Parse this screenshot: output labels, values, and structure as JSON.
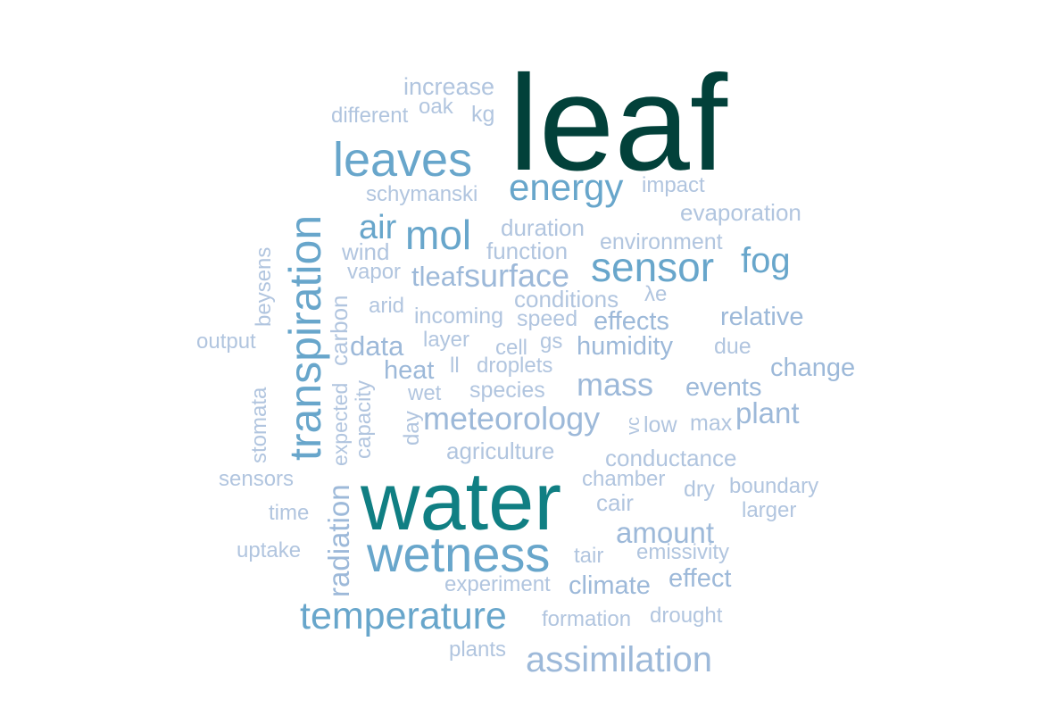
{
  "colors": {
    "darkest": "#02413a",
    "teal": "#107f83",
    "medium_blue": "#68a6cb",
    "light_blue": "#9db9d9",
    "pale_blue": "#b1c5df"
  },
  "words": [
    {
      "text": "leaf",
      "color": "darkest"
    },
    {
      "text": "water",
      "color": "teal"
    },
    {
      "text": "leaves",
      "color": "medium_blue"
    },
    {
      "text": "transpiration",
      "color": "medium_blue"
    },
    {
      "text": "wetness",
      "color": "medium_blue"
    },
    {
      "text": "temperature",
      "color": "medium_blue"
    },
    {
      "text": "sensor",
      "color": "medium_blue"
    },
    {
      "text": "energy",
      "color": "medium_blue"
    },
    {
      "text": "mol",
      "color": "medium_blue"
    },
    {
      "text": "air",
      "color": "medium_blue"
    },
    {
      "text": "fog",
      "color": "medium_blue"
    },
    {
      "text": "surface",
      "color": "light_blue"
    },
    {
      "text": "assimilation",
      "color": "light_blue"
    },
    {
      "text": "meteorology",
      "color": "light_blue"
    },
    {
      "text": "mass",
      "color": "light_blue"
    },
    {
      "text": "plant",
      "color": "light_blue"
    },
    {
      "text": "amount",
      "color": "light_blue"
    },
    {
      "text": "tleaf",
      "color": "light_blue"
    },
    {
      "text": "data",
      "color": "light_blue"
    },
    {
      "text": "heat",
      "color": "light_blue"
    },
    {
      "text": "radiation",
      "color": "light_blue"
    },
    {
      "text": "humidity",
      "color": "light_blue"
    },
    {
      "text": "change",
      "color": "light_blue"
    },
    {
      "text": "effects",
      "color": "light_blue"
    },
    {
      "text": "relative",
      "color": "light_blue"
    },
    {
      "text": "climate",
      "color": "light_blue"
    },
    {
      "text": "effect",
      "color": "light_blue"
    },
    {
      "text": "events",
      "color": "light_blue"
    },
    {
      "text": "increase",
      "color": "pale_blue"
    },
    {
      "text": "oak",
      "color": "pale_blue"
    },
    {
      "text": "kg",
      "color": "pale_blue"
    },
    {
      "text": "different",
      "color": "pale_blue"
    },
    {
      "text": "schymanski",
      "color": "pale_blue"
    },
    {
      "text": "impact",
      "color": "pale_blue"
    },
    {
      "text": "evaporation",
      "color": "pale_blue"
    },
    {
      "text": "duration",
      "color": "pale_blue"
    },
    {
      "text": "wind",
      "color": "pale_blue"
    },
    {
      "text": "function",
      "color": "pale_blue"
    },
    {
      "text": "environment",
      "color": "pale_blue"
    },
    {
      "text": "vapor",
      "color": "pale_blue"
    },
    {
      "text": "conditions",
      "color": "pale_blue"
    },
    {
      "text": "λe",
      "color": "pale_blue"
    },
    {
      "text": "arid",
      "color": "pale_blue"
    },
    {
      "text": "incoming",
      "color": "pale_blue"
    },
    {
      "text": "speed",
      "color": "pale_blue"
    },
    {
      "text": "beysens",
      "color": "pale_blue"
    },
    {
      "text": "carbon",
      "color": "pale_blue"
    },
    {
      "text": "output",
      "color": "pale_blue"
    },
    {
      "text": "layer",
      "color": "pale_blue"
    },
    {
      "text": "cell",
      "color": "pale_blue"
    },
    {
      "text": "gs",
      "color": "pale_blue"
    },
    {
      "text": "due",
      "color": "pale_blue"
    },
    {
      "text": "ll",
      "color": "pale_blue"
    },
    {
      "text": "droplets",
      "color": "pale_blue"
    },
    {
      "text": "stomata",
      "color": "pale_blue"
    },
    {
      "text": "expected",
      "color": "pale_blue"
    },
    {
      "text": "capacity",
      "color": "pale_blue"
    },
    {
      "text": "wet",
      "color": "pale_blue"
    },
    {
      "text": "species",
      "color": "pale_blue"
    },
    {
      "text": "day",
      "color": "pale_blue"
    },
    {
      "text": "vc",
      "color": "pale_blue"
    },
    {
      "text": "low",
      "color": "pale_blue"
    },
    {
      "text": "max",
      "color": "pale_blue"
    },
    {
      "text": "agriculture",
      "color": "pale_blue"
    },
    {
      "text": "conductance",
      "color": "pale_blue"
    },
    {
      "text": "sensors",
      "color": "pale_blue"
    },
    {
      "text": "chamber",
      "color": "pale_blue"
    },
    {
      "text": "dry",
      "color": "pale_blue"
    },
    {
      "text": "boundary",
      "color": "pale_blue"
    },
    {
      "text": "cair",
      "color": "pale_blue"
    },
    {
      "text": "time",
      "color": "pale_blue"
    },
    {
      "text": "larger",
      "color": "pale_blue"
    },
    {
      "text": "uptake",
      "color": "pale_blue"
    },
    {
      "text": "tair",
      "color": "pale_blue"
    },
    {
      "text": "emissivity",
      "color": "pale_blue"
    },
    {
      "text": "experiment",
      "color": "pale_blue"
    },
    {
      "text": "formation",
      "color": "pale_blue"
    },
    {
      "text": "drought",
      "color": "pale_blue"
    },
    {
      "text": "plants",
      "color": "pale_blue"
    }
  ]
}
